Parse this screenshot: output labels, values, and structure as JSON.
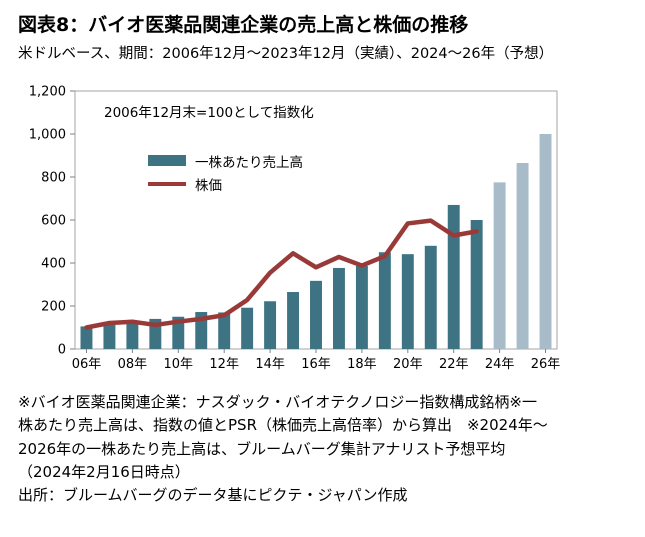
{
  "header": {
    "title": "図表8：バイオ医薬品関連企業の売上高と株価の推移",
    "subtitle": "米ドルベース、期間：2006年12月～2023年12月（実績）、2024～26年（予想）"
  },
  "chart_data": {
    "type": "bar+line",
    "annotation": "2006年12月末=100として指数化",
    "grid": false,
    "legend_position": "inside-top-left",
    "ylim": [
      0,
      1200
    ],
    "years": [
      2006,
      2007,
      2008,
      2009,
      2010,
      2011,
      2012,
      2013,
      2014,
      2015,
      2016,
      2017,
      2018,
      2019,
      2020,
      2021,
      2022,
      2023,
      2024,
      2025,
      2026
    ],
    "series": [
      {
        "name": "一株あたり売上高",
        "type": "bar",
        "color": "#3d7383",
        "forecast_color": "#a8bbc9",
        "forecast_from_year": 2024,
        "values": [
          105,
          113,
          120,
          140,
          150,
          172,
          170,
          192,
          222,
          265,
          317,
          377,
          386,
          450,
          441,
          480,
          670,
          600,
          775,
          865,
          1000
        ]
      },
      {
        "name": "株価",
        "type": "line",
        "color": "#9a3a38",
        "values": [
          100,
          121,
          127,
          112,
          127,
          140,
          157,
          228,
          355,
          445,
          380,
          428,
          388,
          432,
          584,
          597,
          528,
          547
        ]
      }
    ],
    "yticks": [
      {
        "v": 0,
        "label": "0"
      },
      {
        "v": 200,
        "label": "200"
      },
      {
        "v": 400,
        "label": "400"
      },
      {
        "v": 600,
        "label": "600"
      },
      {
        "v": 800,
        "label": "800"
      },
      {
        "v": 1000,
        "label": "1,000"
      },
      {
        "v": 1200,
        "label": "1,200"
      }
    ],
    "xticks": [
      {
        "year": 2006,
        "label": "06年"
      },
      {
        "year": 2008,
        "label": "08年"
      },
      {
        "year": 2010,
        "label": "10年"
      },
      {
        "year": 2012,
        "label": "12年"
      },
      {
        "year": 2014,
        "label": "14年"
      },
      {
        "year": 2016,
        "label": "16年"
      },
      {
        "year": 2018,
        "label": "18年"
      },
      {
        "year": 2020,
        "label": "20年"
      },
      {
        "year": 2022,
        "label": "22年"
      },
      {
        "year": 2024,
        "label": "24年"
      },
      {
        "year": 2026,
        "label": "26年"
      }
    ],
    "colors": {
      "axis": "#808080",
      "border": "#a6a6a6"
    }
  },
  "footer": {
    "notes": "※バイオ医薬品関連企業：ナスダック・バイオテクノロジー指数構成銘柄※一株あたり売上高は、指数の値とPSR（株価売上高倍率）から算出　※2024年～2026年の一株あたり売上高は、ブルームバーグ集計アナリスト予想平均（2024年2月16日時点）",
    "source": "出所：ブルームバーグのデータ基にピクテ・ジャパン作成"
  }
}
